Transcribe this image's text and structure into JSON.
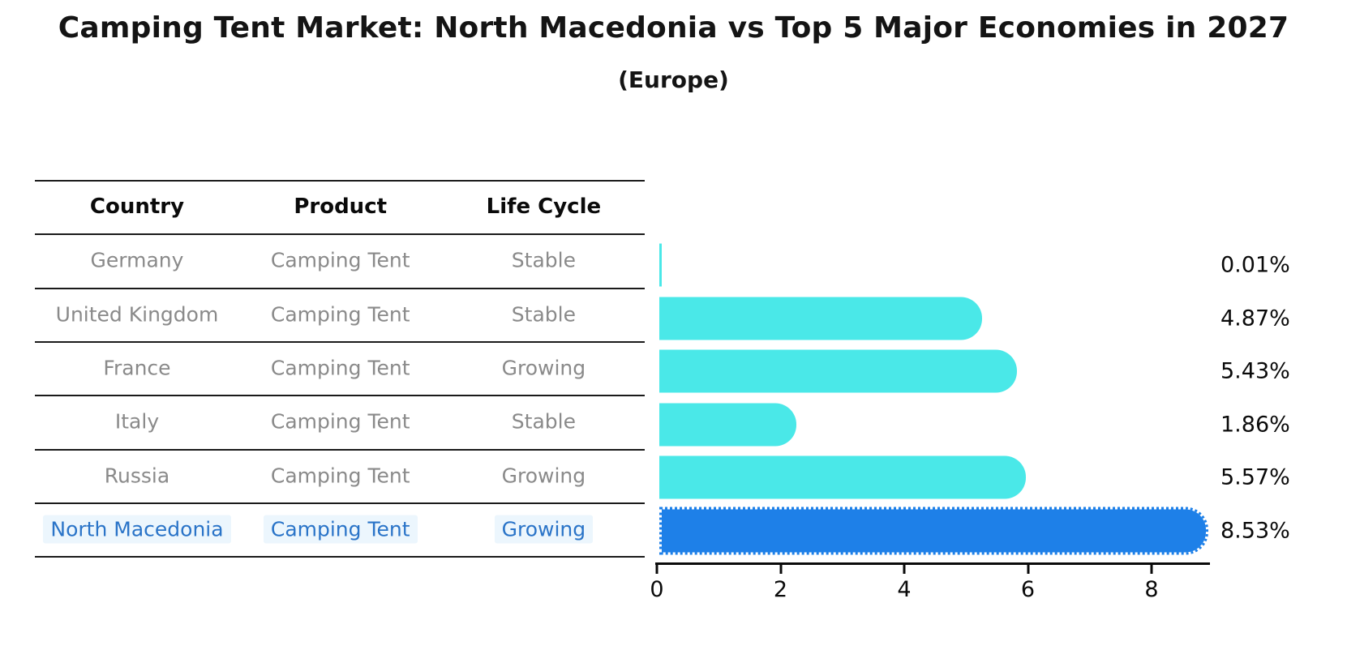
{
  "title": "Camping Tent Market: North Macedonia vs Top 5 Major Economies in 2027",
  "subtitle": "(Europe)",
  "colors": {
    "bar": "#4ae8e8",
    "highlight_bar": "#1e80e8",
    "highlight_text": "#2a74c8",
    "row_text": "#8a8a8a",
    "axis": "#0a0a0a"
  },
  "table": {
    "columns": [
      "Country",
      "Product",
      "Life Cycle"
    ],
    "rows": [
      {
        "country": "Germany",
        "product": "Camping Tent",
        "life_cycle": "Stable",
        "highlight": false
      },
      {
        "country": "United Kingdom",
        "product": "Camping Tent",
        "life_cycle": "Stable",
        "highlight": false
      },
      {
        "country": "France",
        "product": "Camping Tent",
        "life_cycle": "Growing",
        "highlight": false
      },
      {
        "country": "Italy",
        "product": "Camping Tent",
        "life_cycle": "Stable",
        "highlight": false
      },
      {
        "country": "Russia",
        "product": "Camping Tent",
        "life_cycle": "Growing",
        "highlight": false
      },
      {
        "country": "North Macedonia",
        "product": "Camping Tent",
        "life_cycle": "Growing",
        "highlight": true
      }
    ]
  },
  "chart_data": {
    "type": "bar",
    "orientation": "horizontal",
    "title": "Camping Tent Market: North Macedonia vs Top 5 Major Economies in 2027",
    "subtitle": "(Europe)",
    "categories": [
      "Germany",
      "United Kingdom",
      "France",
      "Italy",
      "Russia",
      "North Macedonia"
    ],
    "values": [
      0.01,
      4.87,
      5.43,
      1.86,
      5.57,
      8.53
    ],
    "value_labels": [
      "0.01%",
      "4.87%",
      "5.43%",
      "1.86%",
      "5.57%",
      "8.53%"
    ],
    "highlight_index": 5,
    "xlabel": "",
    "ylabel": "",
    "xticks": [
      0,
      2,
      4,
      6,
      8
    ],
    "xlim": [
      0,
      8.9
    ],
    "grid": false,
    "legend": false
  }
}
